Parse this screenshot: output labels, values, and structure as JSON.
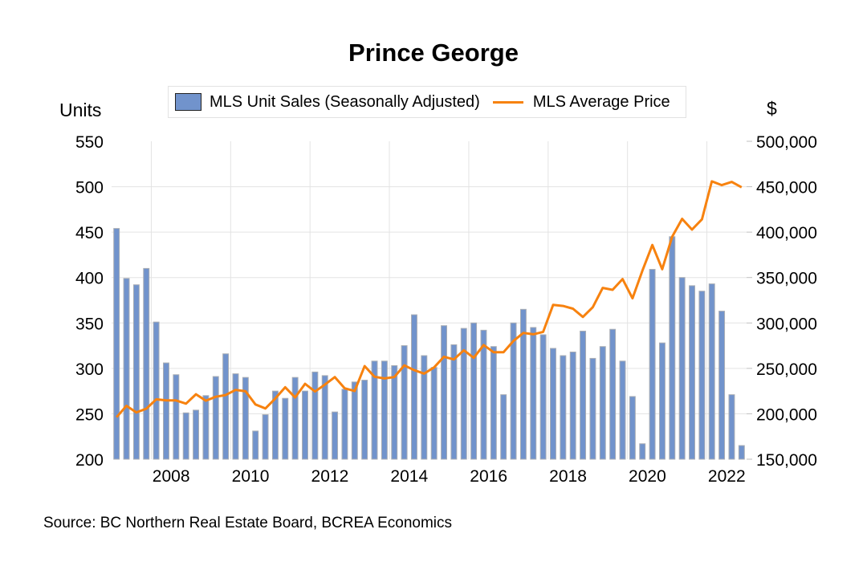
{
  "chart_data": {
    "type": "bar",
    "title": "Prince George",
    "legend": {
      "placement": "top-center",
      "entries": [
        {
          "name": "MLS Unit Sales (Seasonally Adjusted)",
          "kind": "bar",
          "color": "#7193CC"
        },
        {
          "name": "MLS Average Price",
          "kind": "line",
          "color": "#F7820F"
        }
      ]
    },
    "xlabel": "",
    "ylabel": "Units",
    "y2label": "$",
    "ylim": [
      200,
      550
    ],
    "y2lim": [
      150000,
      500000
    ],
    "yticks": [
      "200",
      "250",
      "300",
      "350",
      "400",
      "450",
      "500",
      "550"
    ],
    "y2ticks": [
      "150,000",
      "200,000",
      "250,000",
      "300,000",
      "350,000",
      "400,000",
      "450,000",
      "500,000"
    ],
    "xticks": [
      "2008",
      "2010",
      "2012",
      "2014",
      "2016",
      "2018",
      "2020",
      "2022"
    ],
    "grid": true,
    "frequency": "quarterly",
    "start_period": "2007 Q1",
    "end_period": "2022 Q4",
    "series": [
      {
        "name": "MLS Unit Sales (Seasonally Adjusted)",
        "type": "bar",
        "axis": "left",
        "values": [
          454,
          399,
          392,
          410,
          351,
          306,
          293,
          251,
          254,
          270,
          291,
          316,
          294,
          290,
          231,
          249,
          275,
          267,
          290,
          275,
          296,
          292,
          252,
          277,
          285,
          287,
          308,
          308,
          303,
          325,
          359,
          314,
          301,
          347,
          326,
          344,
          350,
          342,
          324,
          271,
          350,
          365,
          345,
          337,
          322,
          314,
          318,
          341,
          311,
          324,
          343,
          308,
          269,
          217,
          409,
          328,
          445,
          400,
          391,
          385,
          393,
          363,
          271,
          215
        ]
      },
      {
        "name": "MLS Average Price",
        "type": "line",
        "axis": "right",
        "values": [
          196200,
          208800,
          201500,
          205600,
          215900,
          214700,
          214700,
          211200,
          221500,
          214400,
          218800,
          220600,
          226300,
          224800,
          210300,
          205900,
          216800,
          229200,
          218000,
          233000,
          224500,
          232100,
          240400,
          228000,
          225000,
          252500,
          240800,
          238900,
          240400,
          253300,
          248000,
          244200,
          251000,
          262800,
          259900,
          269900,
          261600,
          275700,
          267800,
          267800,
          280200,
          289000,
          287500,
          290200,
          319900,
          318700,
          315700,
          306600,
          317300,
          338600,
          336500,
          348300,
          327100,
          357500,
          385800,
          359200,
          394900,
          414600,
          402800,
          414100,
          455900,
          451700,
          455300,
          449400
        ]
      }
    ],
    "source": "Source:  BC Northern Real Estate Board, BCREA Economics"
  }
}
